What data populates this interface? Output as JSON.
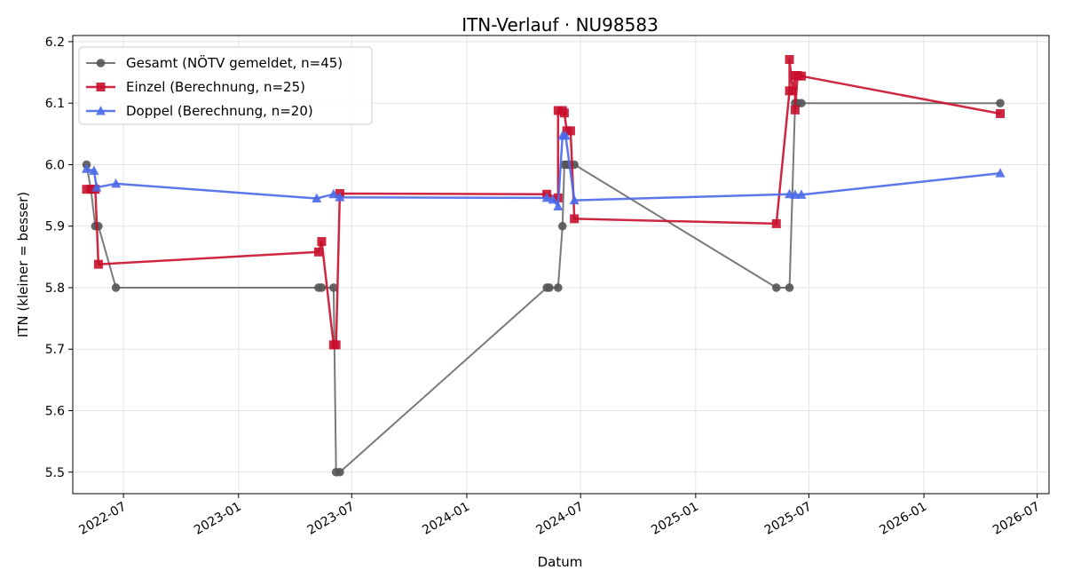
{
  "chart_data": {
    "type": "line",
    "title": "ITN-Verlauf · NU98583",
    "xlabel": "Datum",
    "ylabel": "ITN  (kleiner = besser)",
    "ylim": [
      5.465,
      6.21
    ],
    "xlim": [
      "2022-04-11",
      "2026-07-20"
    ],
    "grid": true,
    "legend_position": "top-left",
    "x_ticks": [
      "2022-07",
      "2023-01",
      "2023-07",
      "2024-01",
      "2024-07",
      "2025-01",
      "2025-07",
      "2026-01",
      "2026-07"
    ],
    "y_ticks": [
      5.5,
      5.6,
      5.7,
      5.8,
      5.9,
      6.0,
      6.1,
      6.2
    ],
    "series": [
      {
        "name": "Gesamt (NÖTV gemeldet, n=45)",
        "color": "#555555",
        "marker": "circle",
        "points": [
          [
            "2022-05-03",
            6.0
          ],
          [
            "2022-05-10",
            5.96
          ],
          [
            "2022-05-17",
            5.9
          ],
          [
            "2022-05-22",
            5.9
          ],
          [
            "2022-06-19",
            5.8
          ],
          [
            "2023-05-09",
            5.8
          ],
          [
            "2023-05-14",
            5.8
          ],
          [
            "2023-06-02",
            5.8
          ],
          [
            "2023-06-06",
            5.5
          ],
          [
            "2023-06-12",
            5.5
          ],
          [
            "2024-05-08",
            5.8
          ],
          [
            "2024-05-12",
            5.8
          ],
          [
            "2024-05-26",
            5.8
          ],
          [
            "2024-06-02",
            5.9
          ],
          [
            "2024-06-05",
            6.0
          ],
          [
            "2024-06-09",
            6.0
          ],
          [
            "2024-06-13",
            6.0
          ],
          [
            "2024-06-21",
            6.0
          ],
          [
            "2025-05-10",
            5.8
          ],
          [
            "2025-05-31",
            5.8
          ],
          [
            "2025-06-09",
            6.1
          ],
          [
            "2025-06-13",
            6.1
          ],
          [
            "2025-06-19",
            6.1
          ],
          [
            "2026-05-03",
            6.1
          ]
        ]
      },
      {
        "name": "Einzel (Berechnung, n=25)",
        "color": "#c8102e",
        "marker": "square",
        "points": [
          [
            "2022-05-03",
            5.96
          ],
          [
            "2022-05-10",
            5.96
          ],
          [
            "2022-05-17",
            5.96
          ],
          [
            "2022-05-22",
            5.838
          ],
          [
            "2023-05-09",
            5.858
          ],
          [
            "2023-05-14",
            5.875
          ],
          [
            "2023-06-02",
            5.707
          ],
          [
            "2023-06-06",
            5.707
          ],
          [
            "2023-06-12",
            5.953
          ],
          [
            "2024-05-08",
            5.952
          ],
          [
            "2024-05-26",
            5.946
          ],
          [
            "2024-05-26",
            6.088
          ],
          [
            "2024-06-02",
            6.088
          ],
          [
            "2024-06-05",
            6.084
          ],
          [
            "2024-06-09",
            6.055
          ],
          [
            "2024-06-15",
            6.055
          ],
          [
            "2024-06-21",
            5.912
          ],
          [
            "2025-05-10",
            5.904
          ],
          [
            "2025-05-31",
            6.12
          ],
          [
            "2025-05-31",
            6.171
          ],
          [
            "2025-06-05",
            6.12
          ],
          [
            "2025-06-09",
            6.145
          ],
          [
            "2025-06-09",
            6.089
          ],
          [
            "2025-06-13",
            6.145
          ],
          [
            "2025-06-19",
            6.144
          ],
          [
            "2026-05-03",
            6.083
          ]
        ]
      },
      {
        "name": "Doppel (Berechnung, n=20)",
        "color": "#4a69e8",
        "marker": "triangle",
        "points": [
          [
            "2022-05-03",
            5.993
          ],
          [
            "2022-05-15",
            5.99
          ],
          [
            "2022-05-19",
            5.963
          ],
          [
            "2022-06-19",
            5.969
          ],
          [
            "2023-05-06",
            5.945
          ],
          [
            "2023-06-02",
            5.952
          ],
          [
            "2023-06-12",
            5.947
          ],
          [
            "2024-05-08",
            5.946
          ],
          [
            "2024-05-18",
            5.943
          ],
          [
            "2024-05-26",
            5.932
          ],
          [
            "2024-06-02",
            6.047
          ],
          [
            "2024-06-07",
            6.047
          ],
          [
            "2024-06-21",
            5.942
          ],
          [
            "2025-05-31",
            5.952
          ],
          [
            "2025-06-09",
            5.951
          ],
          [
            "2025-06-19",
            5.951
          ],
          [
            "2026-05-03",
            5.986
          ]
        ]
      }
    ]
  }
}
